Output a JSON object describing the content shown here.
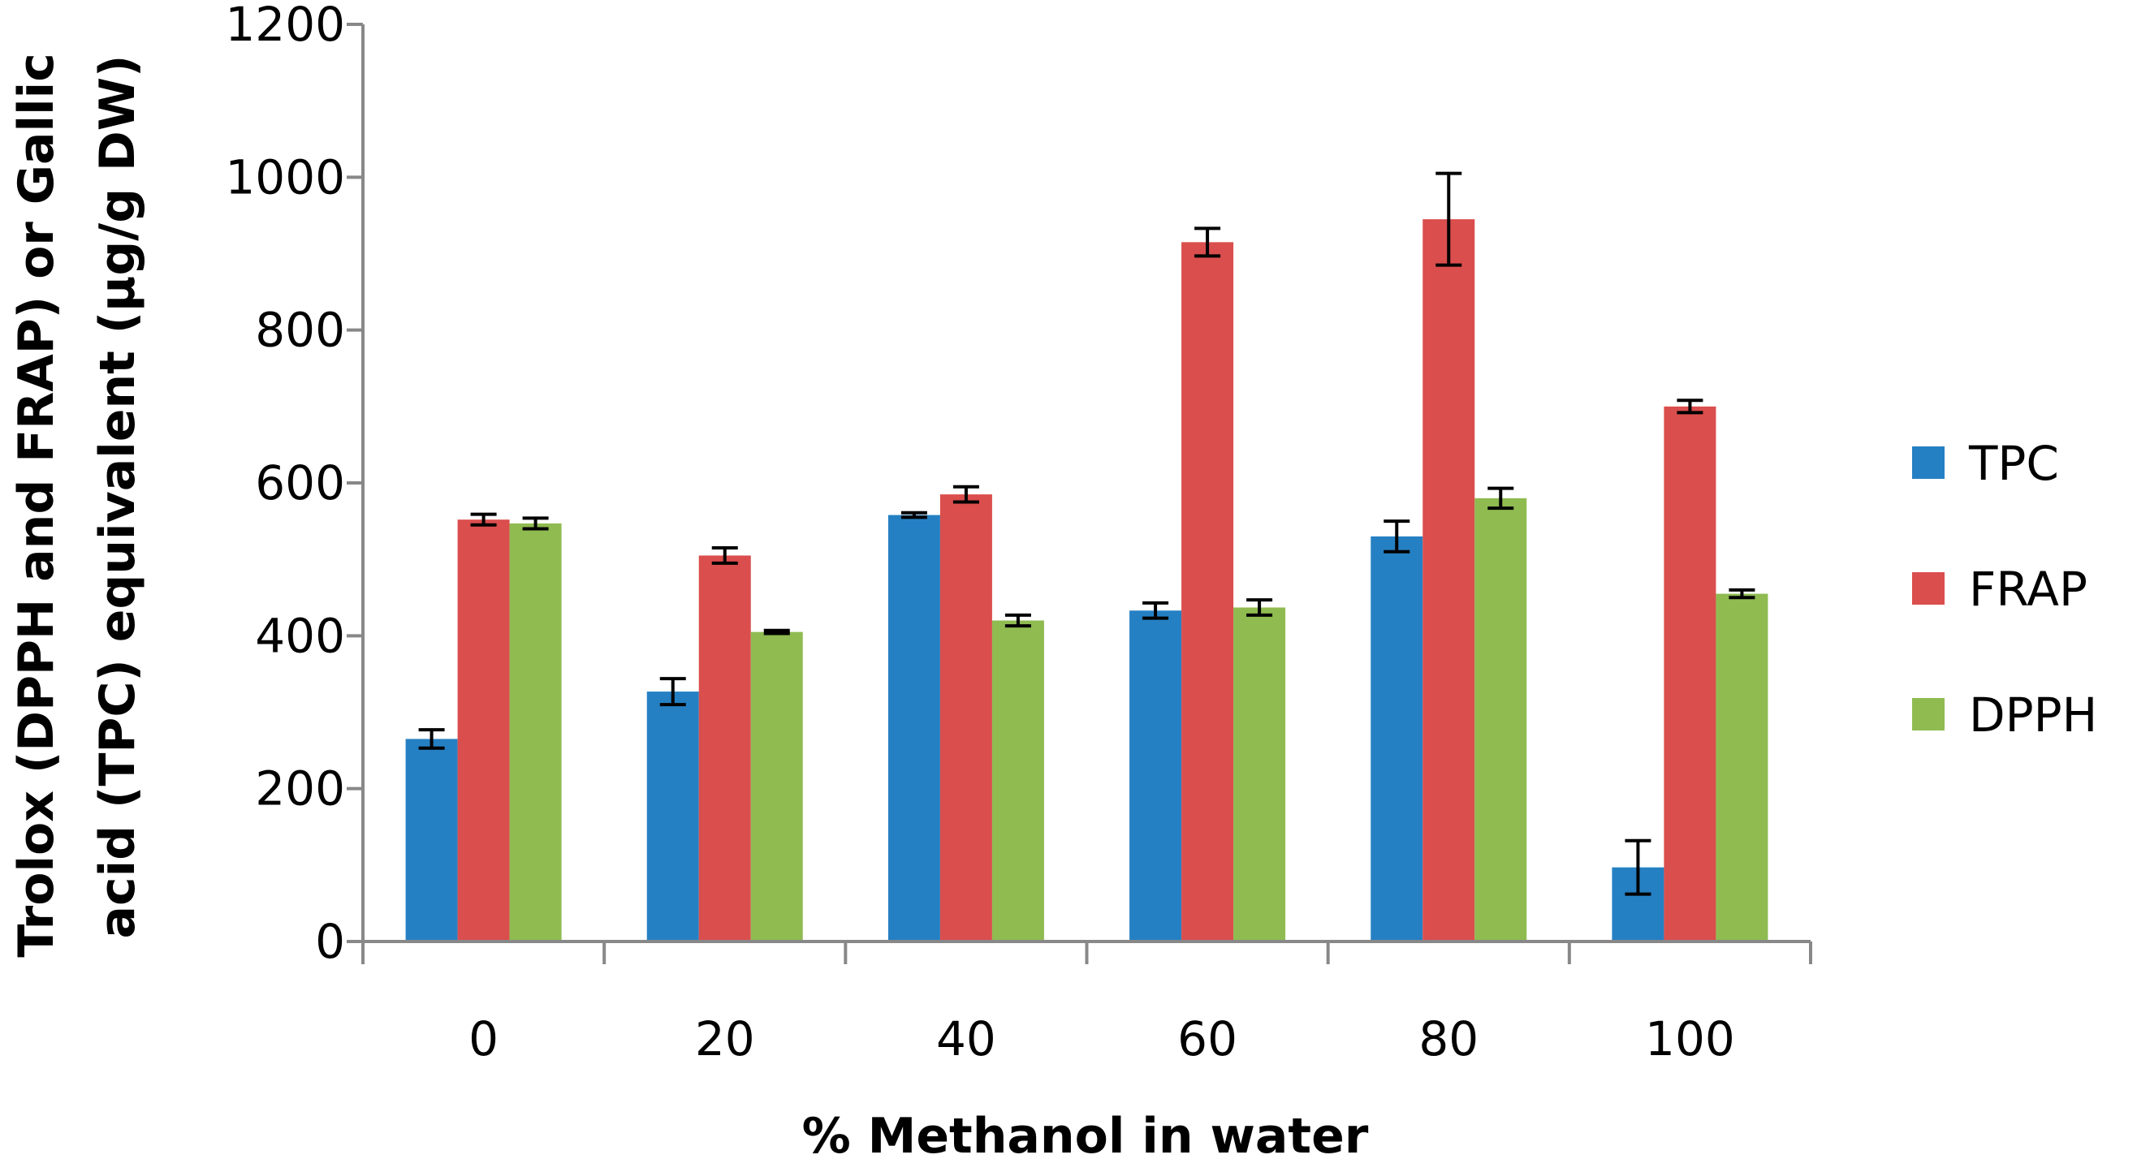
{
  "chart_data": {
    "type": "bar",
    "title": "",
    "xlabel": "% Methanol in water",
    "ylabel_lines": [
      "Trolox (DPPH and FRAP) or Gallic",
      "acid (TPC) equivalent (µg/g DW)"
    ],
    "categories": [
      "0",
      "20",
      "40",
      "60",
      "80",
      "100"
    ],
    "ylim": [
      0,
      1200
    ],
    "yticks": [
      0,
      200,
      400,
      600,
      800,
      1000,
      1200
    ],
    "grid": false,
    "legend_position": "right",
    "series": [
      {
        "name": "TPC",
        "color": "#2580C3",
        "values": [
          265,
          327,
          558,
          433,
          530,
          97
        ],
        "errors": [
          12,
          17,
          3,
          10,
          20,
          35
        ]
      },
      {
        "name": "FRAP",
        "color": "#DA4E4D",
        "values": [
          552,
          505,
          585,
          915,
          945,
          700
        ],
        "errors": [
          7,
          10,
          10,
          18,
          60,
          8
        ]
      },
      {
        "name": "DPPH",
        "color": "#8FBB51",
        "values": [
          547,
          405,
          420,
          437,
          580,
          455
        ],
        "errors": [
          7,
          2,
          7,
          10,
          13,
          5
        ]
      }
    ]
  }
}
